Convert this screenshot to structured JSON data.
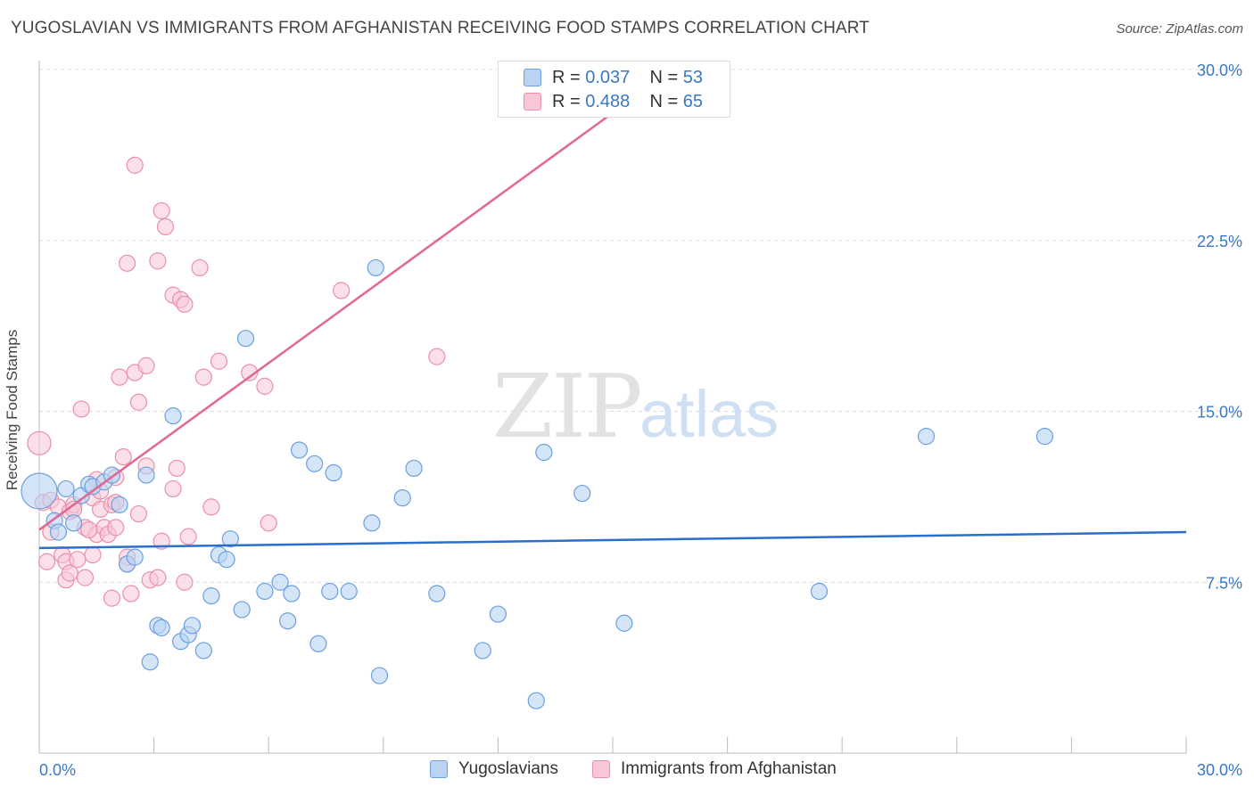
{
  "header": {
    "title": "YUGOSLAVIAN VS IMMIGRANTS FROM AFGHANISTAN RECEIVING FOOD STAMPS CORRELATION CHART",
    "source": "Source: ZipAtlas.com"
  },
  "stats": {
    "row1": {
      "r_label": "R = ",
      "r_value": "0.037",
      "n_label": "N = ",
      "n_value": "53"
    },
    "row2": {
      "r_label": "R = ",
      "r_value": "0.488",
      "n_label": "N = ",
      "n_value": "65"
    }
  },
  "legend": {
    "series1": "Yugoslavians",
    "series2": "Immigrants from Afghanistan"
  },
  "watermark": {
    "zip": "ZIP",
    "atlas": "atlas"
  },
  "colors": {
    "blue_fill": "#b9d3f3",
    "blue_stroke": "#6b9fe0",
    "blue_line": "#2a6fcb",
    "pink_fill": "#f8c6d5",
    "pink_stroke": "#ea8fab",
    "pink_line": "#e06892",
    "tick_text": "#3a78c4"
  },
  "chart_data": {
    "type": "scatter",
    "title": "YUGOSLAVIAN VS IMMIGRANTS FROM AFGHANISTAN RECEIVING FOOD STAMPS CORRELATION CHART",
    "xlabel": "",
    "ylabel": "Receiving Food Stamps",
    "xlim": [
      0,
      30
    ],
    "ylim": [
      0,
      30
    ],
    "x_ticks": [
      0,
      3,
      6,
      9,
      12,
      15,
      18,
      21,
      24,
      27,
      30
    ],
    "x_tick_labels": {
      "min": "0.0%",
      "max": "30.0%"
    },
    "y_ticks": [
      7.5,
      15.0,
      22.5,
      30.0
    ],
    "y_tick_labels": [
      "7.5%",
      "15.0%",
      "22.5%",
      "30.0%"
    ],
    "grid": true,
    "series": [
      {
        "name": "Yugoslavians",
        "R": 0.037,
        "N": 53,
        "trend": {
          "x": [
            0,
            30
          ],
          "y": [
            9.0,
            9.7
          ]
        },
        "points": [
          [
            0.0,
            11.5
          ],
          [
            0.4,
            10.2
          ],
          [
            0.5,
            9.7
          ],
          [
            0.7,
            11.6
          ],
          [
            0.9,
            10.1
          ],
          [
            1.1,
            11.3
          ],
          [
            1.3,
            11.8
          ],
          [
            1.4,
            11.7
          ],
          [
            1.7,
            11.9
          ],
          [
            1.9,
            12.2
          ],
          [
            2.1,
            10.9
          ],
          [
            2.3,
            8.3
          ],
          [
            2.5,
            8.6
          ],
          [
            2.8,
            12.2
          ],
          [
            2.9,
            4.0
          ],
          [
            3.1,
            5.6
          ],
          [
            3.2,
            5.5
          ],
          [
            3.5,
            14.8
          ],
          [
            3.7,
            4.9
          ],
          [
            3.9,
            5.2
          ],
          [
            4.0,
            5.6
          ],
          [
            4.3,
            4.5
          ],
          [
            4.5,
            6.9
          ],
          [
            4.7,
            8.7
          ],
          [
            4.9,
            8.5
          ],
          [
            5.0,
            9.4
          ],
          [
            5.3,
            6.3
          ],
          [
            5.4,
            18.2
          ],
          [
            5.9,
            7.1
          ],
          [
            6.3,
            7.5
          ],
          [
            6.5,
            5.8
          ],
          [
            6.6,
            7.0
          ],
          [
            6.8,
            13.3
          ],
          [
            7.2,
            12.7
          ],
          [
            7.3,
            4.8
          ],
          [
            7.6,
            7.1
          ],
          [
            7.7,
            12.3
          ],
          [
            8.1,
            7.1
          ],
          [
            8.7,
            10.1
          ],
          [
            8.8,
            21.3
          ],
          [
            8.9,
            3.4
          ],
          [
            9.5,
            11.2
          ],
          [
            9.8,
            12.5
          ],
          [
            10.4,
            7.0
          ],
          [
            11.6,
            4.5
          ],
          [
            12.0,
            6.1
          ],
          [
            13.0,
            2.3
          ],
          [
            13.2,
            13.2
          ],
          [
            14.2,
            11.4
          ],
          [
            15.3,
            5.7
          ],
          [
            20.4,
            7.1
          ],
          [
            23.2,
            13.9
          ],
          [
            26.3,
            13.9
          ]
        ]
      },
      {
        "name": "Immigrants from Afghanistan",
        "R": 0.488,
        "N": 65,
        "trend": {
          "x": [
            0,
            15
          ],
          "y": [
            9.8,
            28.1
          ]
        },
        "points": [
          [
            0.0,
            13.6
          ],
          [
            0.1,
            11.0
          ],
          [
            0.2,
            8.4
          ],
          [
            0.3,
            9.7
          ],
          [
            0.3,
            11.1
          ],
          [
            0.5,
            10.8
          ],
          [
            0.6,
            8.7
          ],
          [
            0.7,
            8.4
          ],
          [
            0.7,
            7.6
          ],
          [
            0.8,
            7.9
          ],
          [
            0.8,
            10.6
          ],
          [
            0.9,
            10.9
          ],
          [
            0.9,
            10.7
          ],
          [
            1.0,
            8.5
          ],
          [
            1.1,
            15.1
          ],
          [
            1.2,
            9.9
          ],
          [
            1.2,
            7.7
          ],
          [
            1.4,
            11.2
          ],
          [
            1.4,
            8.7
          ],
          [
            1.5,
            9.6
          ],
          [
            1.5,
            12.0
          ],
          [
            1.6,
            10.7
          ],
          [
            1.6,
            11.5
          ],
          [
            1.7,
            9.9
          ],
          [
            1.8,
            9.6
          ],
          [
            1.9,
            6.8
          ],
          [
            1.9,
            10.9
          ],
          [
            2.0,
            11.0
          ],
          [
            2.0,
            9.9
          ],
          [
            2.1,
            16.5
          ],
          [
            2.2,
            13.0
          ],
          [
            2.3,
            8.6
          ],
          [
            2.3,
            8.3
          ],
          [
            2.3,
            21.5
          ],
          [
            2.4,
            7.0
          ],
          [
            2.5,
            16.7
          ],
          [
            2.5,
            25.8
          ],
          [
            2.6,
            10.5
          ],
          [
            2.6,
            15.4
          ],
          [
            2.8,
            17.0
          ],
          [
            2.8,
            12.6
          ],
          [
            2.9,
            7.6
          ],
          [
            3.1,
            7.7
          ],
          [
            3.1,
            21.6
          ],
          [
            3.2,
            9.3
          ],
          [
            3.2,
            23.8
          ],
          [
            3.3,
            23.1
          ],
          [
            3.5,
            11.6
          ],
          [
            3.5,
            20.1
          ],
          [
            3.6,
            12.5
          ],
          [
            3.7,
            19.9
          ],
          [
            3.8,
            7.5
          ],
          [
            3.8,
            19.7
          ],
          [
            3.9,
            9.5
          ],
          [
            4.2,
            21.3
          ],
          [
            4.3,
            16.5
          ],
          [
            4.5,
            10.8
          ],
          [
            4.7,
            17.2
          ],
          [
            5.5,
            16.7
          ],
          [
            5.9,
            16.1
          ],
          [
            6.0,
            10.1
          ],
          [
            7.9,
            20.3
          ],
          [
            10.4,
            17.4
          ],
          [
            1.3,
            9.8
          ],
          [
            2.0,
            12.1
          ]
        ]
      }
    ]
  }
}
